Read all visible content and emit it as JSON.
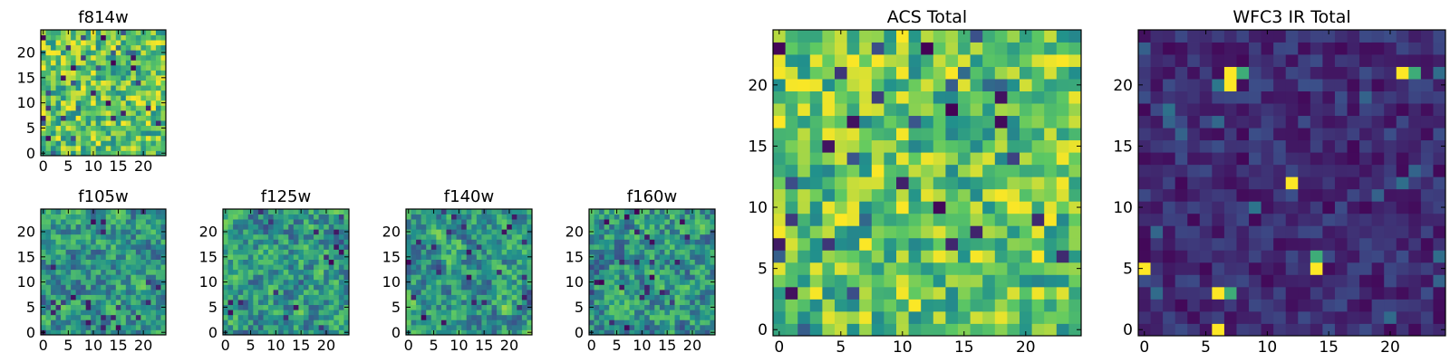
{
  "figure": {
    "description_free": true,
    "colormap": [
      "#440154",
      "#3b528b",
      "#21918c",
      "#5ec962",
      "#fde725"
    ]
  },
  "chart_data": [
    {
      "type": "heatmap",
      "title": "f814w",
      "grid_size": 25,
      "seed": 11,
      "smooth": 0,
      "dist": "noisy_bright",
      "x_ticks": [
        0,
        5,
        10,
        15,
        20
      ],
      "y_ticks": [
        0,
        5,
        10,
        15,
        20
      ],
      "xlim": [
        -0.5,
        24.5
      ],
      "ylim": [
        -0.5,
        24.5
      ]
    },
    {
      "type": "heatmap",
      "title": "f105w",
      "grid_size": 25,
      "seed": 23,
      "smooth": 1,
      "dist": "smooth",
      "x_ticks": [
        0,
        5,
        10,
        15,
        20
      ],
      "y_ticks": [
        0,
        5,
        10,
        15,
        20
      ],
      "xlim": [
        -0.5,
        24.5
      ],
      "ylim": [
        -0.5,
        24.5
      ]
    },
    {
      "type": "heatmap",
      "title": "f125w",
      "grid_size": 25,
      "seed": 37,
      "smooth": 1,
      "dist": "smooth",
      "x_ticks": [
        0,
        5,
        10,
        15,
        20
      ],
      "y_ticks": [
        0,
        5,
        10,
        15,
        20
      ],
      "xlim": [
        -0.5,
        24.5
      ],
      "ylim": [
        -0.5,
        24.5
      ]
    },
    {
      "type": "heatmap",
      "title": "f140w",
      "grid_size": 25,
      "seed": 51,
      "smooth": 1,
      "dist": "smooth",
      "x_ticks": [
        0,
        5,
        10,
        15,
        20
      ],
      "y_ticks": [
        0,
        5,
        10,
        15,
        20
      ],
      "xlim": [
        -0.5,
        24.5
      ],
      "ylim": [
        -0.5,
        24.5
      ]
    },
    {
      "type": "heatmap",
      "title": "f160w",
      "grid_size": 25,
      "seed": 67,
      "smooth": 1,
      "dist": "smooth",
      "x_ticks": [
        0,
        5,
        10,
        15,
        20
      ],
      "y_ticks": [
        0,
        5,
        10,
        15,
        20
      ],
      "xlim": [
        -0.5,
        24.5
      ],
      "ylim": [
        -0.5,
        24.5
      ]
    },
    {
      "type": "heatmap",
      "title": "ACS Total",
      "grid_size": 25,
      "seed": 11,
      "smooth": 0,
      "dist": "noisy_bright",
      "x_ticks": [
        0,
        5,
        10,
        15,
        20
      ],
      "y_ticks": [
        0,
        5,
        10,
        15,
        20
      ],
      "xlim": [
        -0.5,
        24.5
      ],
      "ylim": [
        -0.5,
        24.5
      ]
    },
    {
      "type": "heatmap",
      "title": "WFC3 IR Total",
      "grid_size": 25,
      "seed": 89,
      "smooth": 0,
      "dist": "dark_spots",
      "hot_pixels": [
        [
          0,
          5
        ],
        [
          6,
          3
        ],
        [
          7,
          3
        ],
        [
          6,
          0
        ],
        [
          14,
          5
        ],
        [
          14,
          6
        ],
        [
          12,
          12
        ],
        [
          7,
          21
        ],
        [
          8,
          21
        ],
        [
          7,
          20
        ],
        [
          21,
          21
        ],
        [
          22,
          21
        ]
      ],
      "x_ticks": [
        0,
        5,
        10,
        15,
        20
      ],
      "y_ticks": [
        0,
        5,
        10,
        15,
        20
      ],
      "xlim": [
        -0.5,
        24.5
      ],
      "ylim": [
        -0.5,
        24.5
      ]
    }
  ]
}
